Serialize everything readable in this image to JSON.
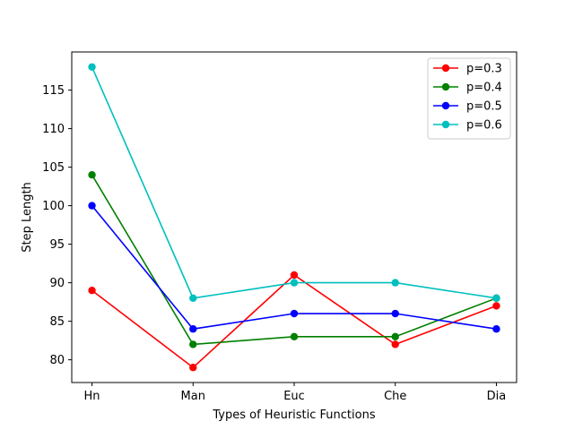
{
  "chart_data": {
    "type": "line",
    "title": "",
    "xlabel": "Types of Heuristic Functions",
    "ylabel": "Step Length",
    "categories": [
      "Hn",
      "Man",
      "Euc",
      "Che",
      "Dia"
    ],
    "ylim": [
      77.05,
      119.95
    ],
    "yticks": [
      80,
      85,
      90,
      95,
      100,
      105,
      110,
      115
    ],
    "grid": false,
    "legend_position": "top-right",
    "series": [
      {
        "name": "p=0.3",
        "color": "#ff0000",
        "values": [
          89,
          79,
          91,
          82,
          87
        ]
      },
      {
        "name": "p=0.4",
        "color": "#008000",
        "values": [
          104,
          82,
          83,
          83,
          88
        ]
      },
      {
        "name": "p=0.5",
        "color": "#0000ff",
        "values": [
          100,
          84,
          86,
          86,
          84
        ]
      },
      {
        "name": "p=0.6",
        "color": "#00bfbf",
        "values": [
          118,
          88,
          90,
          90,
          88
        ]
      }
    ]
  }
}
